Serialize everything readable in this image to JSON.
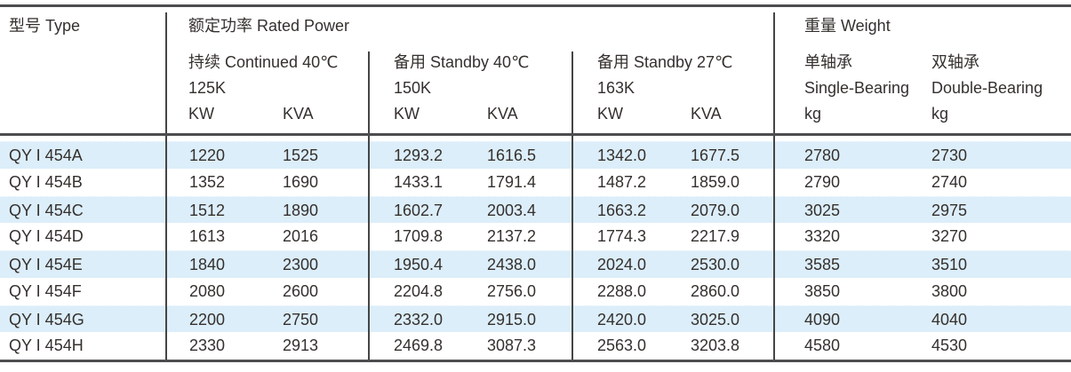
{
  "colors": {
    "stripe_blue": "#dceef9",
    "rule_dark": "#4d4d50",
    "text": "#35302e"
  },
  "header": {
    "type_label": "型号 Type",
    "rated_power_label": "额定功率 Rated Power",
    "weight_label": "重量 Weight",
    "power_groups": [
      {
        "condition": "持续 Continued 40℃",
        "rating_class": "125K",
        "kw_label": "KW",
        "kva_label": "KVA"
      },
      {
        "condition": "备用 Standby 40℃",
        "rating_class": "150K",
        "kw_label": "KW",
        "kva_label": "KVA"
      },
      {
        "condition": "备用 Standby 27℃",
        "rating_class": "163K",
        "kw_label": "KW",
        "kva_label": "KVA"
      }
    ],
    "weight_cols": [
      {
        "name_cn": "单轴承",
        "name_en": "Single-Bearing",
        "unit": "kg"
      },
      {
        "name_cn": "双轴承",
        "name_en": "Double-Bearing",
        "unit": "kg"
      }
    ]
  },
  "rows": [
    {
      "model": "QY I 454A",
      "values": [
        "1220",
        "1525",
        "1293.2",
        "1616.5",
        "1342.0",
        "1677.5",
        "2780",
        "2730"
      ]
    },
    {
      "model": "QY I 454B",
      "values": [
        "1352",
        "1690",
        "1433.1",
        "1791.4",
        "1487.2",
        "1859.0",
        "2790",
        "2740"
      ]
    },
    {
      "model": "QY I 454C",
      "values": [
        "1512",
        "1890",
        "1602.7",
        "2003.4",
        "1663.2",
        "2079.0",
        "3025",
        "2975"
      ]
    },
    {
      "model": "QY I 454D",
      "values": [
        "1613",
        "2016",
        "1709.8",
        "2137.2",
        "1774.3",
        "2217.9",
        "3320",
        "3270"
      ]
    },
    {
      "model": "QY I 454E",
      "values": [
        "1840",
        "2300",
        "1950.4",
        "2438.0",
        "2024.0",
        "2530.0",
        "3585",
        "3510"
      ]
    },
    {
      "model": "QY I 454F",
      "values": [
        "2080",
        "2600",
        "2204.8",
        "2756.0",
        "2288.0",
        "2860.0",
        "3850",
        "3800"
      ]
    },
    {
      "model": "QY I 454G",
      "values": [
        "2200",
        "2750",
        "2332.0",
        "2915.0",
        "2420.0",
        "3025.0",
        "4090",
        "4040"
      ]
    },
    {
      "model": "QY I 454H",
      "values": [
        "2330",
        "2913",
        "2469.8",
        "3087.3",
        "2563.0",
        "3203.8",
        "4580",
        "4530"
      ]
    }
  ]
}
